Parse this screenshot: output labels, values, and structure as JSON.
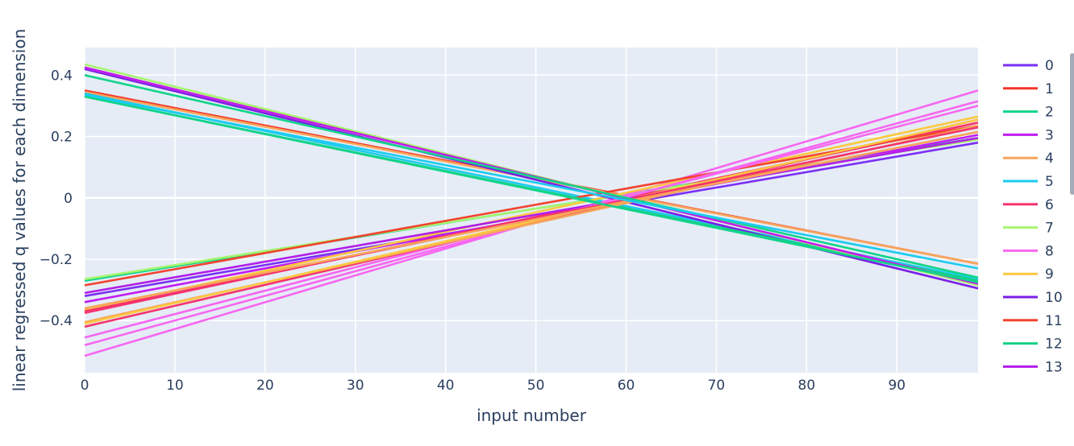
{
  "chart_data": {
    "type": "line",
    "title": "",
    "xlabel": "input number",
    "ylabel": "linear regressed q values for each dimension",
    "xlim": [
      0,
      99
    ],
    "ylim": [
      -0.57,
      0.49
    ],
    "x_ticks": [
      0,
      10,
      20,
      30,
      40,
      50,
      60,
      70,
      80,
      90
    ],
    "y_ticks": [
      -0.4,
      -0.2,
      0,
      0.2,
      0.4
    ],
    "y_tick_labels": [
      "−0.4",
      "−0.2",
      "0",
      "0.2",
      "0.4"
    ],
    "grid": true,
    "legend_position": "right",
    "x": [
      0,
      99
    ],
    "series": [
      {
        "name": "0",
        "color": "#7b2ff7",
        "values": [
          -0.32,
          0.18
        ]
      },
      {
        "name": "1",
        "color": "#f5372a",
        "values": [
          0.35,
          -0.215
        ]
      },
      {
        "name": "2",
        "color": "#11d48a",
        "values": [
          -0.27,
          0.195
        ]
      },
      {
        "name": "3",
        "color": "#c21bf2",
        "values": [
          -0.34,
          0.205
        ]
      },
      {
        "name": "4",
        "color": "#f7a55a",
        "values": [
          0.345,
          -0.215
        ]
      },
      {
        "name": "5",
        "color": "#1ccbf0",
        "values": [
          0.34,
          -0.265
        ]
      },
      {
        "name": "6",
        "color": "#f5336e",
        "values": [
          -0.375,
          0.245
        ]
      },
      {
        "name": "7",
        "color": "#a6f56e",
        "values": [
          -0.265,
          0.19
        ]
      },
      {
        "name": "8",
        "color": "#f766f0",
        "values": [
          -0.515,
          0.35
        ]
      },
      {
        "name": "9",
        "color": "#fcc840",
        "values": [
          -0.365,
          0.265
        ]
      },
      {
        "name": "10",
        "color": "#7a1fe6",
        "values": [
          0.42,
          -0.295
        ]
      },
      {
        "name": "11",
        "color": "#f2432f",
        "values": [
          -0.285,
          0.235
        ]
      },
      {
        "name": "12",
        "color": "#15d085",
        "values": [
          0.33,
          -0.27
        ]
      },
      {
        "name": "13",
        "color": "#b21de8",
        "values": [
          -0.31,
          0.195
        ]
      },
      {
        "name": "",
        "color": "#f766f0",
        "values": [
          -0.48,
          0.315
        ]
      },
      {
        "name": "",
        "color": "#f766f0",
        "values": [
          -0.455,
          0.3
        ]
      },
      {
        "name": "",
        "color": "#f5336e",
        "values": [
          -0.42,
          0.255
        ]
      },
      {
        "name": "",
        "color": "#f7a55a",
        "values": [
          -0.405,
          0.235
        ]
      },
      {
        "name": "",
        "color": "#fcc840",
        "values": [
          -0.41,
          0.255
        ]
      },
      {
        "name": "",
        "color": "#f5336e",
        "values": [
          -0.37,
          0.23
        ]
      },
      {
        "name": "",
        "color": "#f7a55a",
        "values": [
          -0.36,
          0.215
        ]
      },
      {
        "name": "",
        "color": "#a6f56e",
        "values": [
          0.435,
          -0.285
        ]
      },
      {
        "name": "",
        "color": "#fcc840",
        "values": [
          0.425,
          -0.28
        ]
      },
      {
        "name": "",
        "color": "#c21bf2",
        "values": [
          0.425,
          -0.28
        ]
      },
      {
        "name": "",
        "color": "#11d48a",
        "values": [
          0.4,
          -0.26
        ]
      },
      {
        "name": "",
        "color": "#1ccbf0",
        "values": [
          0.335,
          -0.23
        ]
      },
      {
        "name": "",
        "color": "#11d48a",
        "values": [
          0.33,
          -0.275
        ]
      }
    ]
  }
}
